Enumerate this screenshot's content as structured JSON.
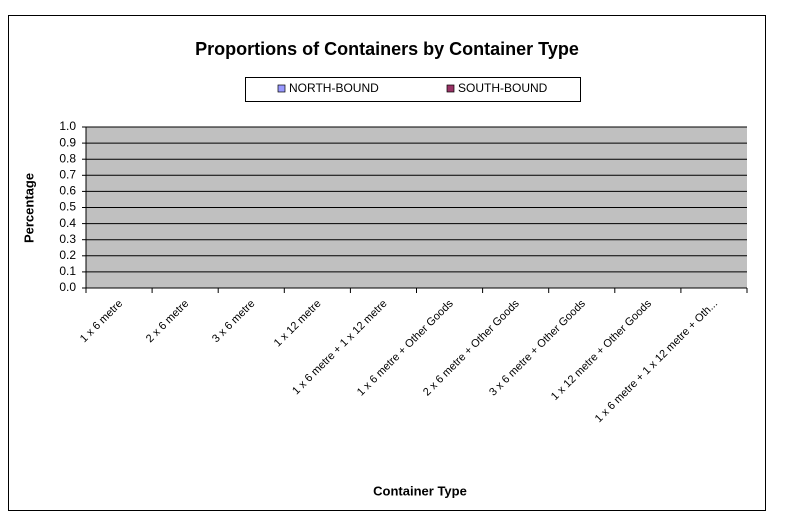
{
  "chart_data": {
    "type": "bar",
    "title": "Proportions of Containers by Container Type",
    "x_label": "Container Type",
    "y_label": "Percentage",
    "categories": [
      "1 x 6 metre",
      "2 x 6 metre",
      "3 x 6 metre",
      "1 x 12 metre",
      "1 x 6 metre + 1 x 12 metre",
      "1 x 6 metre + Other Goods",
      "2 x 6 metre + Other Goods",
      "3 x 6 metre + Other Goods",
      "1 x 12 metre + Other Goods",
      "1 x 6 metre + 1 x 12 metre + Oth..."
    ],
    "series": [
      {
        "name": "NORTH-BOUND",
        "color": "#9999ff",
        "values": [
          0,
          0,
          0,
          0,
          0,
          0,
          0,
          0,
          0,
          0
        ]
      },
      {
        "name": "SOUTH-BOUND",
        "color": "#993366",
        "values": [
          0,
          0,
          0,
          0,
          0,
          0,
          0,
          0,
          0,
          0
        ]
      }
    ],
    "ylim": [
      0,
      1
    ],
    "yticks": [
      {
        "value": 0,
        "label": "0.0"
      },
      0.1,
      0.2,
      0.3,
      0.4,
      0.5,
      0.6,
      0.7,
      0.8,
      0.9,
      {
        "value": 1,
        "label": "1.0"
      }
    ],
    "grid": true,
    "legend": "top"
  }
}
